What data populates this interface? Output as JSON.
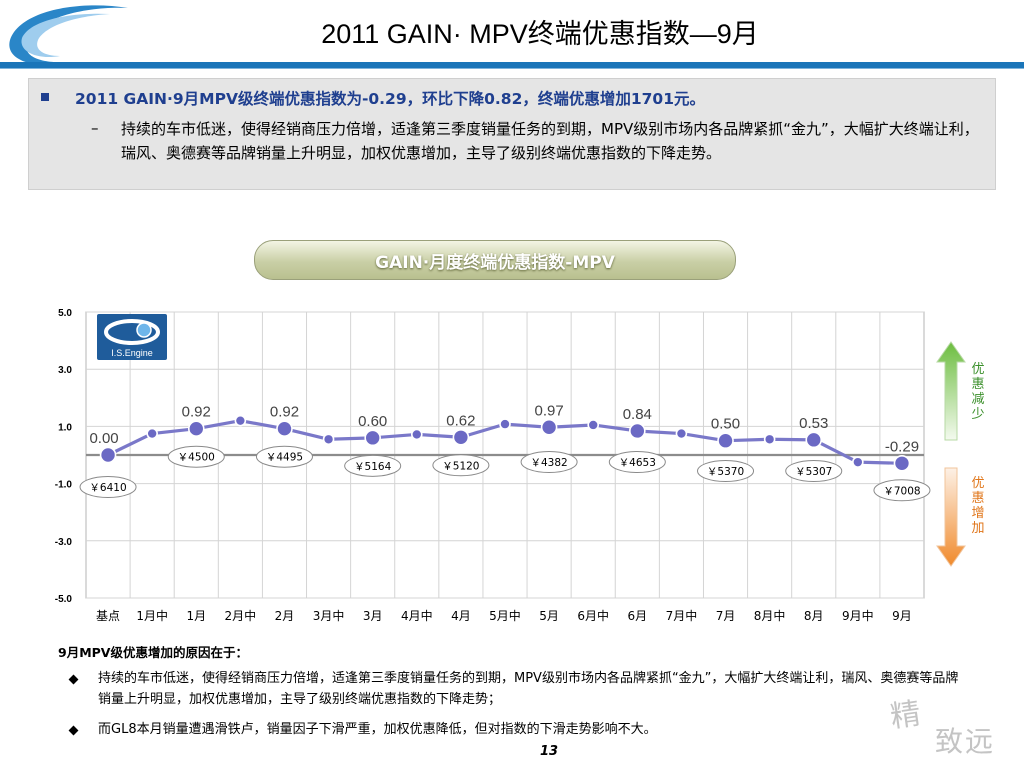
{
  "slide": {
    "title": "2011 GAIN· MPV终端优惠指数—9月",
    "summary_head": "2011 GAIN·9月MPV级终端优惠指数为-0.29，环比下降0.82，终端优惠增加1701元。",
    "summary_dash": "–",
    "summary_body": "持续的车市低迷，使得经销商压力倍增，适逢第三季度销量任务的到期，MPV级别市场内各品牌紧抓“金九”，大幅扩大终端让利，瑞风、奥德赛等品牌销量上升明显，加权优惠增加，主导了级别终端优惠指数的下降走势。",
    "side_up": "优惠减少",
    "side_down": "优惠增加",
    "reasons_title": "9月MPV级优惠增加的原因在于：",
    "reasons": [
      "持续的车市低迷，使得经销商压力倍增，适逢第三季度销量任务的到期，MPV级别市场内各品牌紧抓“金九”，大幅扩大终端让利，瑞风、奥德赛等品牌销量上升明显，加权优惠增加，主导了级别终端优惠指数的下降走势；",
      "而GL8本月销量遭遇滑铁卢，销量因子下滑严重，加权优惠降低，但对指数的下滑走势影响不大。"
    ],
    "page_number": "13",
    "watermark_top": "精",
    "watermark_bottom": "致远",
    "logo_text": "I.S.Engine",
    "accent_color": "#1a75b9",
    "line_color": "#7a78c9"
  },
  "chart_data": {
    "type": "line",
    "title": "GAIN·月度终端优惠指数-MPV",
    "categories": [
      "基点",
      "1月中",
      "1月",
      "2月中",
      "2月",
      "3月中",
      "3月",
      "4月中",
      "4月",
      "5月中",
      "5月",
      "6月中",
      "6月",
      "7月中",
      "7月",
      "8月中",
      "8月",
      "9月中",
      "9月"
    ],
    "values": [
      0.0,
      0.75,
      0.92,
      1.2,
      0.92,
      0.55,
      0.6,
      0.72,
      0.62,
      1.08,
      0.97,
      1.05,
      0.84,
      0.75,
      0.5,
      0.55,
      0.53,
      -0.25,
      -0.29
    ],
    "value_labels": [
      {
        "index": 0,
        "text": "0.00"
      },
      {
        "index": 2,
        "text": "0.92"
      },
      {
        "index": 4,
        "text": "0.92"
      },
      {
        "index": 6,
        "text": "0.60"
      },
      {
        "index": 8,
        "text": "0.62"
      },
      {
        "index": 10,
        "text": "0.97"
      },
      {
        "index": 12,
        "text": "0.84"
      },
      {
        "index": 14,
        "text": "0.50"
      },
      {
        "index": 16,
        "text": "0.53"
      },
      {
        "index": 18,
        "text": "-0.29"
      }
    ],
    "price_labels": [
      {
        "index": 0,
        "text": "￥6410"
      },
      {
        "index": 2,
        "text": "￥4500"
      },
      {
        "index": 4,
        "text": "￥4495"
      },
      {
        "index": 6,
        "text": "￥5164"
      },
      {
        "index": 8,
        "text": "￥5120"
      },
      {
        "index": 10,
        "text": "￥4382"
      },
      {
        "index": 12,
        "text": "￥4653"
      },
      {
        "index": 14,
        "text": "￥5370"
      },
      {
        "index": 16,
        "text": "￥5307"
      },
      {
        "index": 18,
        "text": "￥7008"
      }
    ],
    "yticks": [
      "5.0",
      "3.0",
      "1.0",
      "-1.0",
      "-3.0",
      "-5.0"
    ],
    "ylim": [
      -5,
      5
    ],
    "grid": true,
    "baseline": 0
  }
}
